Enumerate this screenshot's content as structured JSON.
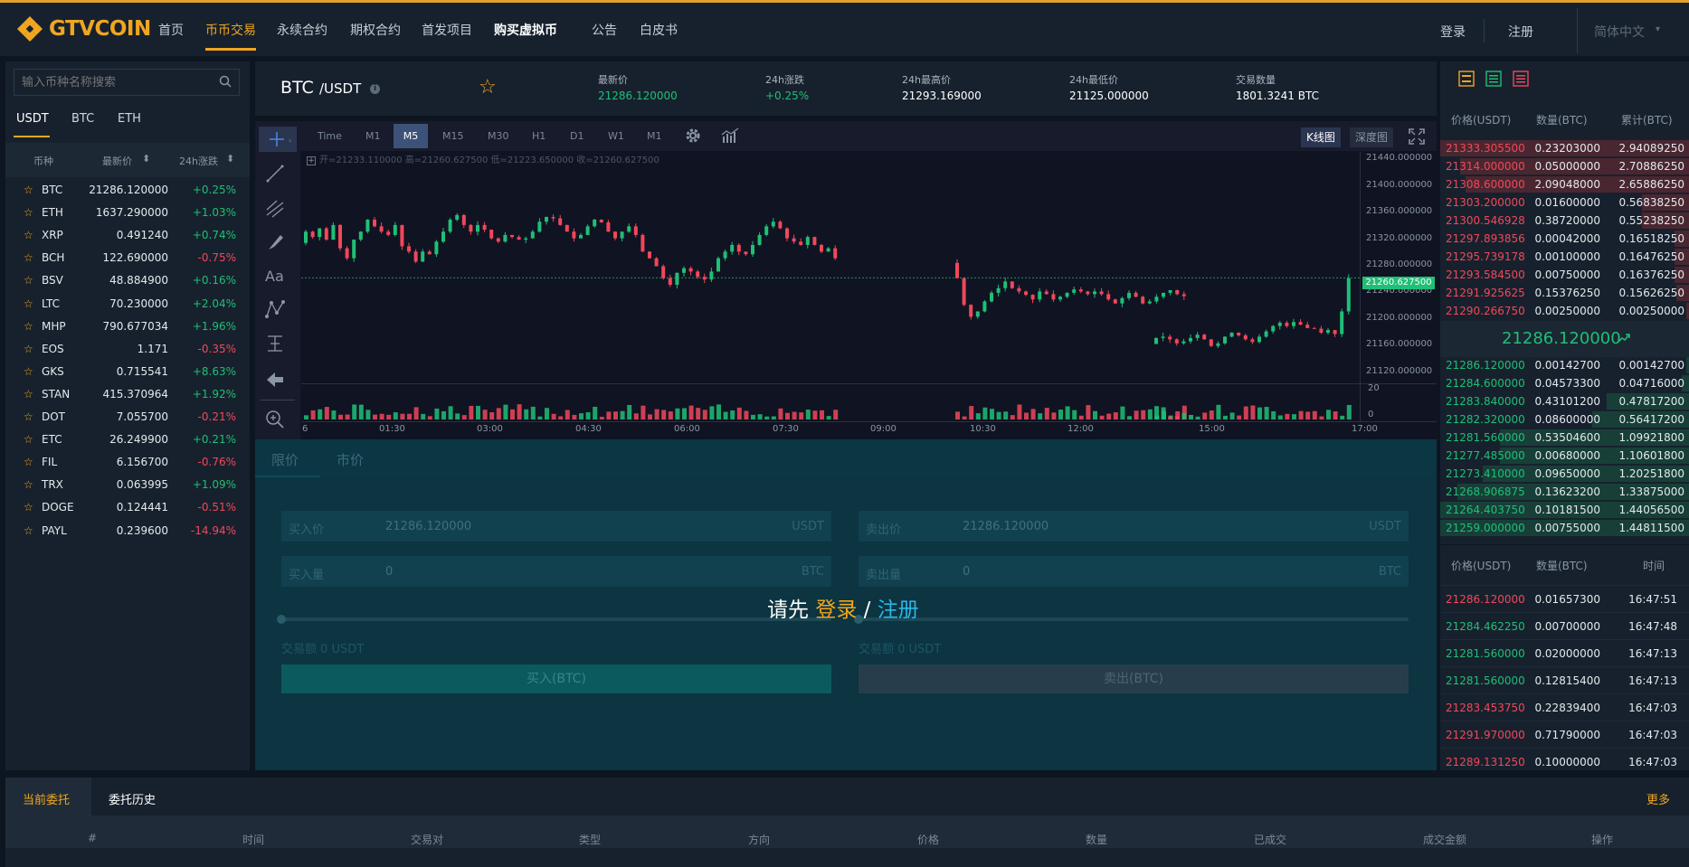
{
  "brand": {
    "name": "GTVCOIN"
  },
  "nav": {
    "items": [
      "首页",
      "币币交易",
      "永续合约",
      "期权合约",
      "首发项目",
      "购买虚拟币",
      "公告",
      "白皮书"
    ],
    "login": "登录",
    "register": "注册",
    "language": "简体中文"
  },
  "market": {
    "search_placeholder": "输入币种名称搜索",
    "tabs": [
      "USDT",
      "BTC",
      "ETH"
    ],
    "headers": {
      "coin": "币种",
      "price": "最新价",
      "change": "24h涨跌"
    },
    "rows": [
      {
        "sym": "BTC",
        "price": "21286.120000",
        "chg": "+0.25%",
        "up": true
      },
      {
        "sym": "ETH",
        "price": "1637.290000",
        "chg": "+1.03%",
        "up": true
      },
      {
        "sym": "XRP",
        "price": "0.491240",
        "chg": "+0.74%",
        "up": true
      },
      {
        "sym": "BCH",
        "price": "122.690000",
        "chg": "-0.75%",
        "up": false
      },
      {
        "sym": "BSV",
        "price": "48.884900",
        "chg": "+0.16%",
        "up": true
      },
      {
        "sym": "LTC",
        "price": "70.230000",
        "chg": "+2.04%",
        "up": true
      },
      {
        "sym": "MHP",
        "price": "790.677034",
        "chg": "+1.96%",
        "up": true
      },
      {
        "sym": "EOS",
        "price": "1.171",
        "chg": "-0.35%",
        "up": false
      },
      {
        "sym": "GKS",
        "price": "0.715541",
        "chg": "+8.63%",
        "up": true
      },
      {
        "sym": "STAN",
        "price": "415.370964",
        "chg": "+1.92%",
        "up": true
      },
      {
        "sym": "DOT",
        "price": "7.055700",
        "chg": "-0.21%",
        "up": false
      },
      {
        "sym": "ETC",
        "price": "26.249900",
        "chg": "+0.21%",
        "up": true
      },
      {
        "sym": "FIL",
        "price": "6.156700",
        "chg": "-0.76%",
        "up": false
      },
      {
        "sym": "TRX",
        "price": "0.063995",
        "chg": "+1.09%",
        "up": true
      },
      {
        "sym": "DOGE",
        "price": "0.124441",
        "chg": "-0.51%",
        "up": false
      },
      {
        "sym": "PAYL",
        "price": "0.239600",
        "chg": "-14.94%",
        "up": false
      }
    ]
  },
  "ticker": {
    "base": "BTC",
    "quote": "/USDT",
    "last_label": "最新价",
    "last": "21286.120000",
    "change_label": "24h涨跌",
    "change": "+0.25%",
    "high_label": "24h最高价",
    "high": "21293.169000",
    "low_label": "24h最低价",
    "low": "21125.000000",
    "vol_label": "交易数量",
    "vol": "1801.3241 BTC"
  },
  "chart": {
    "timeframes": [
      "Time",
      "M1",
      "M5",
      "M15",
      "M30",
      "H1",
      "D1",
      "W1",
      "M1"
    ],
    "active_timeframe": "M5",
    "kline_label": "K线图",
    "depth_label": "深度图",
    "ohlc": {
      "open_label": "开=",
      "open": "21233.110000",
      "high_label": "高=",
      "high": "21260.627500",
      "low_label": "低=",
      "low": "21223.650000",
      "close_label": "收=",
      "close": "21260.627500"
    },
    "price_ticks": [
      "21440.000000",
      "21400.000000",
      "21360.000000",
      "21320.000000",
      "21280.000000",
      "21240.000000",
      "21200.000000",
      "21160.000000",
      "21120.000000"
    ],
    "current_price": "21260.627500",
    "volume_ticks": [
      "20",
      "0"
    ],
    "time_ticks": [
      "6",
      "01:30",
      "03:00",
      "04:30",
      "06:00",
      "07:30",
      "09:00",
      "10:30",
      "12:00",
      "15:00",
      "17:00"
    ]
  },
  "chart_data": {
    "type": "candlestick",
    "ylim": [
      21110,
      21450
    ],
    "current_price": 21260.6275,
    "segments": [
      [
        21313,
        21330,
        21322,
        21335,
        21318,
        21340,
        21305,
        21290,
        21318,
        21330,
        21348,
        21338,
        21330,
        21325,
        21340,
        21308,
        21300,
        21285,
        21300,
        21296,
        21315,
        21330,
        21348,
        21355,
        21340,
        21330,
        21340,
        21333,
        21320,
        21315,
        21325,
        21322,
        21318,
        21320,
        21330,
        21345,
        21352,
        21350,
        21340,
        21330,
        21320,
        21325,
        21338,
        21348,
        21344,
        21330,
        21320,
        21330,
        21338,
        21325,
        21300,
        21290,
        21278,
        21260,
        21250,
        21268,
        21275,
        21270,
        21262,
        21258,
        21270,
        21290,
        21300,
        21310,
        21300,
        21296,
        21310,
        21325,
        21338,
        21345,
        21335,
        21320,
        21315,
        21310,
        21322,
        21310,
        21300,
        21305,
        21290
      ],
      [
        21283,
        21260,
        21220,
        21202,
        21210,
        21225,
        21238,
        21245,
        21255,
        21245,
        21240,
        21235,
        21228,
        21240,
        21236,
        21228,
        21232,
        21238,
        21243,
        21240,
        21236,
        21240,
        21236,
        21228,
        21222,
        21230,
        21238,
        21232,
        21222,
        21225,
        21232,
        21238,
        21242,
        21236,
        21233
      ],
      [
        21161,
        21170,
        21172,
        21168,
        21162,
        21165,
        21170,
        21175,
        21168,
        21158,
        21162,
        21172,
        21178,
        21174,
        21168,
        21164,
        21172,
        21180,
        21188,
        21193,
        21188,
        21194,
        21190,
        21185,
        21184,
        21178,
        21182,
        21176,
        21210,
        21260
      ]
    ]
  },
  "orderbook": {
    "headers": {
      "price": "价格(USDT)",
      "amount": "数量(BTC)",
      "total": "累计(BTC)"
    },
    "asks": [
      {
        "p": "21333.305500",
        "a": "0.23203000",
        "t": "2.94089250",
        "depth": 1.0
      },
      {
        "p": "21314.000000",
        "a": "0.05000000",
        "t": "2.70886250",
        "depth": 0.92
      },
      {
        "p": "21308.600000",
        "a": "2.09048000",
        "t": "2.65886250",
        "depth": 0.9
      },
      {
        "p": "21303.200000",
        "a": "0.01600000",
        "t": "0.56838250",
        "depth": 0.19
      },
      {
        "p": "21300.546928",
        "a": "0.38720000",
        "t": "0.55238250",
        "depth": 0.19
      },
      {
        "p": "21297.893856",
        "a": "0.00042000",
        "t": "0.16518250",
        "depth": 0.06
      },
      {
        "p": "21295.739178",
        "a": "0.00100000",
        "t": "0.16476250",
        "depth": 0.06
      },
      {
        "p": "21293.584500",
        "a": "0.00750000",
        "t": "0.16376250",
        "depth": 0.06
      },
      {
        "p": "21291.925625",
        "a": "0.15376250",
        "t": "0.15626250",
        "depth": 0.05
      },
      {
        "p": "21290.266750",
        "a": "0.00250000",
        "t": "0.00250000",
        "depth": 0.01
      }
    ],
    "mid_price": "21286.120000",
    "bids": [
      {
        "p": "21286.120000",
        "a": "0.00142700",
        "t": "0.00142700",
        "depth": 0.01
      },
      {
        "p": "21284.600000",
        "a": "0.04573300",
        "t": "0.04716000",
        "depth": 0.03
      },
      {
        "p": "21283.840000",
        "a": "0.43101200",
        "t": "0.47817200",
        "depth": 0.33
      },
      {
        "p": "21282.320000",
        "a": "0.08600000",
        "t": "0.56417200",
        "depth": 0.39
      },
      {
        "p": "21281.560000",
        "a": "0.53504600",
        "t": "1.09921800",
        "depth": 0.76
      },
      {
        "p": "21277.485000",
        "a": "0.00680000",
        "t": "1.10601800",
        "depth": 0.76
      },
      {
        "p": "21273.410000",
        "a": "0.09650000",
        "t": "1.20251800",
        "depth": 0.83
      },
      {
        "p": "21268.906875",
        "a": "0.13623200",
        "t": "1.33875000",
        "depth": 0.93
      },
      {
        "p": "21264.403750",
        "a": "0.10181500",
        "t": "1.44056500",
        "depth": 1.0
      },
      {
        "p": "21259.000000",
        "a": "0.00755000",
        "t": "1.44811500",
        "depth": 1.0
      }
    ]
  },
  "trades": {
    "headers": {
      "price": "价格(USDT)",
      "amount": "数量(BTC)",
      "time": "时间"
    },
    "rows": [
      {
        "p": "21286.120000",
        "a": "0.01657300",
        "t": "16:47:51",
        "up": false
      },
      {
        "p": "21284.462250",
        "a": "0.00700000",
        "t": "16:47:48",
        "up": true
      },
      {
        "p": "21281.560000",
        "a": "0.02000000",
        "t": "16:47:13",
        "up": true
      },
      {
        "p": "21281.560000",
        "a": "0.12815400",
        "t": "16:47:13",
        "up": true
      },
      {
        "p": "21283.453750",
        "a": "0.22839400",
        "t": "16:47:03",
        "up": false
      },
      {
        "p": "21291.970000",
        "a": "0.71790000",
        "t": "16:47:03",
        "up": false
      },
      {
        "p": "21289.131250",
        "a": "0.10000000",
        "t": "16:47:03",
        "up": false
      }
    ]
  },
  "trade_form": {
    "tabs": [
      "限价",
      "市价"
    ],
    "buy_price_label": "买入价",
    "buy_price": "21286.120000",
    "buy_price_unit": "USDT",
    "buy_amount_label": "买入量",
    "buy_amount": "0",
    "buy_amount_unit": "BTC",
    "sell_price_label": "卖出价",
    "sell_price": "21286.120000",
    "sell_price_unit": "USDT",
    "sell_amount_label": "卖出量",
    "sell_amount": "0",
    "sell_amount_unit": "BTC",
    "buy_turnover": "交易额 0 USDT",
    "sell_turnover": "交易额 0 USDT",
    "buy_button": "买入(BTC)",
    "sell_button": "卖出(BTC)",
    "login_prompt": "请先",
    "login_link": "登录",
    "slash": "/",
    "register_link": "注册"
  },
  "orders": {
    "tabs": [
      "当前委托",
      "委托历史"
    ],
    "more": "更多",
    "columns": [
      "#",
      "时间",
      "交易对",
      "类型",
      "方向",
      "价格",
      "数量",
      "已成交",
      "成交金额",
      "操作"
    ]
  },
  "colors": {
    "accent": "#f0a620",
    "up": "#1fbf76",
    "down": "#f0485a",
    "link": "#2bb6e8"
  }
}
